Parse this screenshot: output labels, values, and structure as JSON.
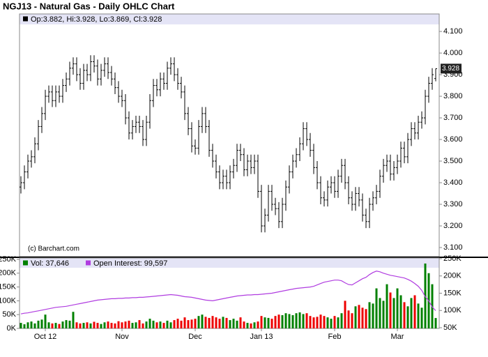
{
  "chart_data": {
    "type": "ohlc",
    "title": "NGJ13 - Natural Gas - Daily OHLC Chart",
    "info_label": "Op:3.882, Hi:3.928, Lo:3.869, Cl:3.928",
    "source": "(c) Barchart.com",
    "color": "#000000",
    "grid": false,
    "categories": [
      null,
      null,
      null,
      null,
      null,
      null,
      null,
      "Oct 12",
      null,
      null,
      null,
      null,
      null,
      null,
      null,
      null,
      null,
      null,
      null,
      null,
      null,
      null,
      null,
      null,
      null,
      null,
      null,
      null,
      null,
      "Nov",
      null,
      null,
      null,
      null,
      null,
      null,
      null,
      null,
      null,
      null,
      null,
      null,
      null,
      null,
      null,
      null,
      null,
      null,
      null,
      null,
      "Dec",
      null,
      null,
      null,
      null,
      null,
      null,
      null,
      null,
      null,
      null,
      null,
      null,
      null,
      null,
      null,
      null,
      null,
      null,
      "Jan 13",
      null,
      null,
      null,
      null,
      null,
      null,
      null,
      null,
      null,
      null,
      null,
      null,
      null,
      null,
      null,
      null,
      null,
      null,
      null,
      null,
      "Feb",
      null,
      null,
      null,
      null,
      null,
      null,
      null,
      null,
      null,
      null,
      null,
      null,
      null,
      null,
      null,
      null,
      null,
      "Mar",
      null,
      null,
      null,
      null,
      null,
      null,
      null,
      null,
      null,
      null,
      null
    ],
    "ohlc": [
      [
        3.38,
        3.43,
        3.35,
        3.4
      ],
      [
        3.4,
        3.48,
        3.37,
        3.45
      ],
      [
        3.45,
        3.53,
        3.42,
        3.5
      ],
      [
        3.5,
        3.55,
        3.47,
        3.52
      ],
      [
        3.52,
        3.61,
        3.49,
        3.58
      ],
      [
        3.58,
        3.69,
        3.55,
        3.66
      ],
      [
        3.66,
        3.75,
        3.63,
        3.72
      ],
      [
        3.72,
        3.83,
        3.69,
        3.8
      ],
      [
        3.8,
        3.85,
        3.77,
        3.82
      ],
      [
        3.82,
        3.85,
        3.75,
        3.78
      ],
      [
        3.78,
        3.85,
        3.75,
        3.82
      ],
      [
        3.82,
        3.85,
        3.77,
        3.8
      ],
      [
        3.8,
        3.88,
        3.77,
        3.85
      ],
      [
        3.85,
        3.91,
        3.82,
        3.88
      ],
      [
        3.88,
        3.96,
        3.85,
        3.93
      ],
      [
        3.93,
        3.98,
        3.9,
        3.95
      ],
      [
        3.95,
        3.98,
        3.87,
        3.9
      ],
      [
        3.9,
        3.93,
        3.83,
        3.86
      ],
      [
        3.86,
        3.95,
        3.83,
        3.92
      ],
      [
        3.92,
        3.95,
        3.87,
        3.9
      ],
      [
        3.9,
        3.99,
        3.87,
        3.96
      ],
      [
        3.96,
        3.99,
        3.91,
        3.94
      ],
      [
        3.94,
        3.97,
        3.85,
        3.88
      ],
      [
        3.88,
        3.95,
        3.85,
        3.92
      ],
      [
        3.92,
        3.98,
        3.89,
        3.95
      ],
      [
        3.95,
        3.98,
        3.88,
        3.91
      ],
      [
        3.91,
        3.94,
        3.85,
        3.88
      ],
      [
        3.88,
        3.91,
        3.81,
        3.84
      ],
      [
        3.84,
        3.87,
        3.77,
        3.8
      ],
      [
        3.8,
        3.83,
        3.75,
        3.78
      ],
      [
        3.78,
        3.81,
        3.67,
        3.7
      ],
      [
        3.7,
        3.73,
        3.6,
        3.63
      ],
      [
        3.63,
        3.69,
        3.6,
        3.66
      ],
      [
        3.66,
        3.71,
        3.63,
        3.68
      ],
      [
        3.68,
        3.71,
        3.63,
        3.66
      ],
      [
        3.66,
        3.69,
        3.57,
        3.6
      ],
      [
        3.6,
        3.71,
        3.57,
        3.68
      ],
      [
        3.68,
        3.81,
        3.65,
        3.78
      ],
      [
        3.78,
        3.88,
        3.75,
        3.85
      ],
      [
        3.85,
        3.88,
        3.8,
        3.83
      ],
      [
        3.83,
        3.91,
        3.8,
        3.88
      ],
      [
        3.88,
        3.91,
        3.83,
        3.86
      ],
      [
        3.86,
        3.96,
        3.83,
        3.93
      ],
      [
        3.93,
        3.98,
        3.9,
        3.95
      ],
      [
        3.95,
        3.98,
        3.87,
        3.9
      ],
      [
        3.9,
        3.93,
        3.83,
        3.86
      ],
      [
        3.86,
        3.89,
        3.79,
        3.82
      ],
      [
        3.82,
        3.85,
        3.69,
        3.72
      ],
      [
        3.72,
        3.75,
        3.62,
        3.65
      ],
      [
        3.65,
        3.68,
        3.54,
        3.57
      ],
      [
        3.57,
        3.6,
        3.53,
        3.56
      ],
      [
        3.56,
        3.69,
        3.53,
        3.66
      ],
      [
        3.66,
        3.75,
        3.63,
        3.72
      ],
      [
        3.72,
        3.75,
        3.63,
        3.66
      ],
      [
        3.66,
        3.69,
        3.52,
        3.55
      ],
      [
        3.55,
        3.58,
        3.47,
        3.5
      ],
      [
        3.5,
        3.53,
        3.42,
        3.45
      ],
      [
        3.45,
        3.48,
        3.37,
        3.4
      ],
      [
        3.4,
        3.46,
        3.37,
        3.43
      ],
      [
        3.43,
        3.46,
        3.37,
        3.4
      ],
      [
        3.4,
        3.48,
        3.37,
        3.45
      ],
      [
        3.45,
        3.51,
        3.42,
        3.48
      ],
      [
        3.48,
        3.58,
        3.45,
        3.55
      ],
      [
        3.55,
        3.58,
        3.5,
        3.53
      ],
      [
        3.53,
        3.56,
        3.43,
        3.46
      ],
      [
        3.46,
        3.53,
        3.43,
        3.5
      ],
      [
        3.5,
        3.53,
        3.44,
        3.47
      ],
      [
        3.47,
        3.53,
        3.44,
        3.5
      ],
      [
        3.5,
        3.53,
        3.33,
        3.36
      ],
      [
        3.36,
        3.39,
        3.17,
        3.2
      ],
      [
        3.2,
        3.28,
        3.17,
        3.25
      ],
      [
        3.25,
        3.39,
        3.22,
        3.36
      ],
      [
        3.36,
        3.39,
        3.27,
        3.3
      ],
      [
        3.3,
        3.33,
        3.25,
        3.28
      ],
      [
        3.28,
        3.31,
        3.19,
        3.22
      ],
      [
        3.22,
        3.33,
        3.19,
        3.3
      ],
      [
        3.3,
        3.41,
        3.27,
        3.38
      ],
      [
        3.38,
        3.48,
        3.35,
        3.45
      ],
      [
        3.45,
        3.53,
        3.42,
        3.5
      ],
      [
        3.5,
        3.56,
        3.47,
        3.53
      ],
      [
        3.53,
        3.61,
        3.5,
        3.58
      ],
      [
        3.58,
        3.68,
        3.55,
        3.65
      ],
      [
        3.65,
        3.68,
        3.57,
        3.6
      ],
      [
        3.6,
        3.63,
        3.52,
        3.55
      ],
      [
        3.55,
        3.58,
        3.44,
        3.47
      ],
      [
        3.47,
        3.5,
        3.37,
        3.4
      ],
      [
        3.4,
        3.43,
        3.3,
        3.33
      ],
      [
        3.33,
        3.36,
        3.29,
        3.32
      ],
      [
        3.32,
        3.41,
        3.29,
        3.38
      ],
      [
        3.38,
        3.43,
        3.35,
        3.4
      ],
      [
        3.4,
        3.43,
        3.33,
        3.36
      ],
      [
        3.36,
        3.46,
        3.33,
        3.43
      ],
      [
        3.43,
        3.51,
        3.4,
        3.48
      ],
      [
        3.48,
        3.51,
        3.37,
        3.4
      ],
      [
        3.4,
        3.43,
        3.3,
        3.33
      ],
      [
        3.33,
        3.36,
        3.27,
        3.3
      ],
      [
        3.3,
        3.38,
        3.27,
        3.35
      ],
      [
        3.35,
        3.38,
        3.29,
        3.32
      ],
      [
        3.32,
        3.35,
        3.22,
        3.25
      ],
      [
        3.25,
        3.28,
        3.19,
        3.22
      ],
      [
        3.22,
        3.33,
        3.19,
        3.3
      ],
      [
        3.3,
        3.36,
        3.27,
        3.33
      ],
      [
        3.33,
        3.39,
        3.3,
        3.36
      ],
      [
        3.36,
        3.46,
        3.33,
        3.43
      ],
      [
        3.43,
        3.51,
        3.4,
        3.48
      ],
      [
        3.48,
        3.53,
        3.45,
        3.5
      ],
      [
        3.5,
        3.53,
        3.41,
        3.44
      ],
      [
        3.44,
        3.5,
        3.41,
        3.47
      ],
      [
        3.47,
        3.53,
        3.44,
        3.5
      ],
      [
        3.5,
        3.59,
        3.47,
        3.56
      ],
      [
        3.56,
        3.59,
        3.49,
        3.52
      ],
      [
        3.52,
        3.63,
        3.49,
        3.6
      ],
      [
        3.6,
        3.68,
        3.57,
        3.65
      ],
      [
        3.65,
        3.68,
        3.6,
        3.63
      ],
      [
        3.63,
        3.71,
        3.6,
        3.68
      ],
      [
        3.68,
        3.73,
        3.65,
        3.7
      ],
      [
        3.7,
        3.83,
        3.67,
        3.8
      ],
      [
        3.8,
        3.89,
        3.77,
        3.86
      ],
      [
        3.86,
        3.93,
        3.83,
        3.9
      ],
      [
        3.882,
        3.928,
        3.869,
        3.928
      ]
    ],
    "ylim": [
      3.058,
      4.181
    ],
    "yticks": [
      {
        "value": 3.1,
        "label": "3.100"
      },
      {
        "value": 3.2,
        "label": "3.200"
      },
      {
        "value": 3.3,
        "label": "3.300"
      },
      {
        "value": 3.4,
        "label": "3.400"
      },
      {
        "value": 3.5,
        "label": "3.500"
      },
      {
        "value": 3.6,
        "label": "3.600"
      },
      {
        "value": 3.7,
        "label": "3.700"
      },
      {
        "value": 3.8,
        "label": "3.800"
      },
      {
        "value": 3.9,
        "label": "3.900"
      },
      {
        "value": 4.0,
        "label": "4.000"
      },
      {
        "value": 4.1,
        "label": "4.100"
      }
    ],
    "volume": {
      "type": "bar",
      "legend": "Vol: 37,646",
      "up_color": "#008000",
      "down_color": "#ee0000",
      "values": [
        20000,
        15000,
        22000,
        25000,
        18000,
        28000,
        32000,
        50000,
        22000,
        18000,
        20000,
        16000,
        25000,
        30000,
        28000,
        60000,
        22000,
        18000,
        20000,
        22000,
        18000,
        24000,
        20000,
        16000,
        22000,
        25000,
        20000,
        18000,
        26000,
        22000,
        25000,
        28000,
        20000,
        22000,
        30000,
        18000,
        25000,
        35000,
        28000,
        22000,
        25000,
        20000,
        28000,
        22000,
        30000,
        35000,
        28000,
        40000,
        30000,
        32000,
        35000,
        45000,
        50000,
        42000,
        38000,
        45000,
        40000,
        35000,
        42000,
        38000,
        30000,
        35000,
        28000,
        40000,
        25000,
        20000,
        18000,
        22000,
        25000,
        45000,
        40000,
        38000,
        35000,
        45000,
        50000,
        48000,
        55000,
        52000,
        48000,
        55000,
        58000,
        52000,
        55000,
        45000,
        40000,
        42000,
        50000,
        45000,
        40000,
        35000,
        45000,
        40000,
        55000,
        100000,
        65000,
        55000,
        80000,
        85000,
        75000,
        70000,
        95000,
        90000,
        145000,
        110000,
        100000,
        160000,
        130000,
        110000,
        145000,
        120000,
        95000,
        80000,
        110000,
        120000,
        90000,
        75000,
        235000,
        200000,
        160000,
        37646
      ],
      "ylim": [
        0,
        255000
      ],
      "yticks": [
        {
          "value": 0,
          "label": "0K"
        },
        {
          "value": 50000,
          "label": "50K"
        },
        {
          "value": 100000,
          "label": "100K"
        },
        {
          "value": 150000,
          "label": "150K"
        },
        {
          "value": 200000,
          "label": "200K"
        },
        {
          "value": 250000,
          "label": "250K"
        }
      ]
    },
    "open_interest": {
      "type": "line",
      "legend": "Open Interest: 99,597",
      "color": "#b03ce0",
      "axis": "y2",
      "values": [
        90000,
        92000,
        93000,
        95000,
        97000,
        99000,
        101000,
        103000,
        105000,
        107000,
        109000,
        110000,
        111000,
        112000,
        114000,
        116000,
        118000,
        120000,
        122000,
        124000,
        126000,
        128000,
        130000,
        131000,
        132000,
        133000,
        134000,
        134000,
        135000,
        135000,
        136000,
        136000,
        137000,
        137000,
        138000,
        138000,
        139000,
        140000,
        141000,
        142000,
        143000,
        144000,
        145000,
        146000,
        145000,
        144000,
        142000,
        140000,
        139000,
        138000,
        136000,
        134000,
        132000,
        130000,
        129000,
        128000,
        130000,
        132000,
        134000,
        136000,
        138000,
        140000,
        142000,
        143000,
        144000,
        145000,
        145000,
        146000,
        146000,
        147000,
        148000,
        149000,
        150000,
        152000,
        154000,
        156000,
        158000,
        160000,
        162000,
        164000,
        165000,
        166000,
        167000,
        168000,
        170000,
        174000,
        178000,
        182000,
        184000,
        186000,
        188000,
        188000,
        186000,
        180000,
        175000,
        174000,
        180000,
        186000,
        192000,
        196000,
        204000,
        210000,
        214000,
        212000,
        208000,
        205000,
        202000,
        200000,
        198000,
        196000,
        194000,
        190000,
        185000,
        178000,
        170000,
        158000,
        140000,
        128000,
        110000,
        99597
      ],
      "y2lim": [
        48000,
        252000
      ],
      "y2ticks": [
        {
          "value": 50000,
          "label": "50K"
        },
        {
          "value": 100000,
          "label": "100K"
        },
        {
          "value": 150000,
          "label": "150K"
        },
        {
          "value": 200000,
          "label": "200K"
        },
        {
          "value": 250000,
          "label": "250K"
        }
      ]
    }
  }
}
